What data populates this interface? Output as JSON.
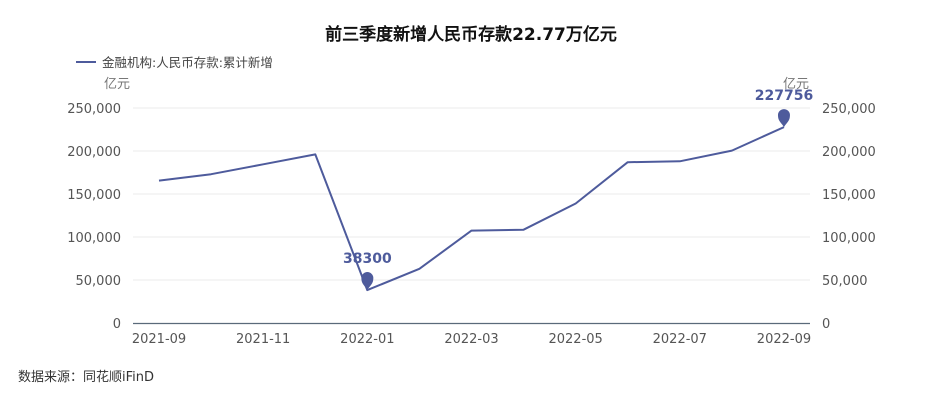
{
  "chart_data": {
    "type": "line",
    "title": "前三季度新增人民币存款22.77万亿元",
    "legend": "金融机构:人民币存款:累计新增",
    "y_unit_left": "亿元",
    "y_unit_right": "亿元",
    "ylim": [
      0,
      250000
    ],
    "y_ticks": [
      "0",
      "50,000",
      "100,000",
      "150,000",
      "200,000",
      "250,000"
    ],
    "x": [
      "2021-09",
      "2021-10",
      "2021-11",
      "2021-12",
      "2022-01",
      "2022-02",
      "2022-03",
      "2022-04",
      "2022-05",
      "2022-06",
      "2022-07",
      "2022-08",
      "2022-09"
    ],
    "x_tick_labels": [
      "2021-09",
      "2021-11",
      "2022-01",
      "2022-03",
      "2022-05",
      "2022-07",
      "2022-09"
    ],
    "series": [
      {
        "values": [
          165600,
          173000,
          184500,
          196000,
          38300,
          63000,
          107500,
          108500,
          139000,
          187000,
          188000,
          200500,
          227756
        ]
      }
    ],
    "annotations": [
      {
        "x": "2022-01",
        "label": "38300"
      },
      {
        "x": "2022-09",
        "label": "227756"
      }
    ],
    "grid": true,
    "legend_position": "top-left",
    "colors": {
      "line": "#4e5b9c",
      "grid": "#ebebeb",
      "axis": "#5a6a7a"
    }
  },
  "source": "数据来源：同花顺iFinD"
}
